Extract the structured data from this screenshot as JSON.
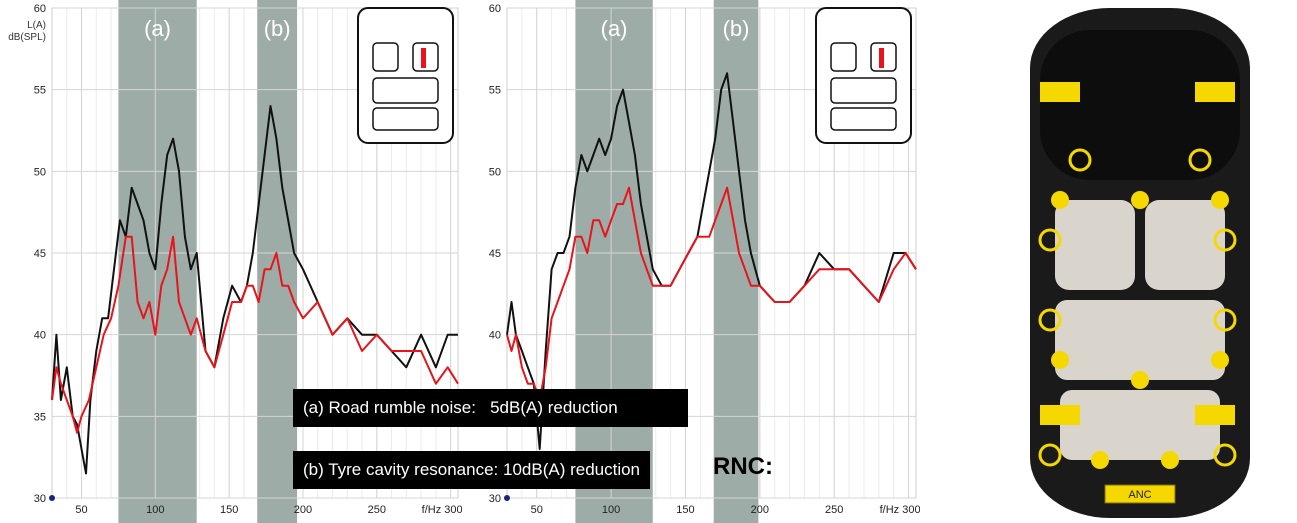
{
  "colors": {
    "band": "#9eaca8",
    "series_before": "#111111",
    "series_after": "#e8141b",
    "actuator": "#f5d800",
    "car_body": "#1a1a1a",
    "seats": "#d9d5cc"
  },
  "callouts": {
    "a": "(a) Road rumble noise:   5dB(A) reduction",
    "b": "(b) Tyre cavity resonance: 10dB(A) reduction",
    "rnc": "RNC:"
  },
  "car": {
    "anc_label": "ANC",
    "icon": "car-top-view-icon"
  },
  "chart_data": [
    {
      "type": "line",
      "ylabel": "L(A)",
      "ylabel2": "dB(SPL)",
      "xlabel": "f/Hz",
      "ylim": [
        30,
        60
      ],
      "xlim": [
        30,
        305
      ],
      "yticks": [
        30,
        35,
        40,
        45,
        50,
        55,
        60
      ],
      "xticks": [
        50,
        100,
        150,
        200,
        250,
        300
      ],
      "xticklabels": [
        "50",
        "100",
        "150",
        "200",
        "250",
        "f/Hz  300"
      ],
      "grid": true,
      "bands": [
        {
          "label": "(a)",
          "x0": 75,
          "x1": 128
        },
        {
          "label": "(b)",
          "x0": 169,
          "x1": 196
        }
      ],
      "series": [
        {
          "values": [
            [
              30,
              36
            ],
            [
              33,
              40
            ],
            [
              36,
              36
            ],
            [
              40,
              38
            ],
            [
              44,
              35
            ],
            [
              47,
              34.5
            ],
            [
              50,
              33
            ],
            [
              53,
              31.5
            ],
            [
              56,
              36
            ],
            [
              60,
              39
            ],
            [
              64,
              41
            ],
            [
              68,
              41
            ],
            [
              72,
              44
            ],
            [
              76,
              47
            ],
            [
              80,
              46
            ],
            [
              84,
              49
            ],
            [
              88,
              48
            ],
            [
              92,
              47
            ],
            [
              96,
              45
            ],
            [
              100,
              44
            ],
            [
              104,
              48
            ],
            [
              108,
              51
            ],
            [
              112,
              52
            ],
            [
              116,
              50
            ],
            [
              120,
              46
            ],
            [
              124,
              44
            ],
            [
              128,
              45
            ],
            [
              134,
              39
            ],
            [
              140,
              38
            ],
            [
              146,
              41
            ],
            [
              152,
              43
            ],
            [
              158,
              42
            ],
            [
              162,
              43
            ],
            [
              166,
              45
            ],
            [
              170,
              48
            ],
            [
              174,
              51
            ],
            [
              178,
              54
            ],
            [
              182,
              52
            ],
            [
              186,
              49
            ],
            [
              190,
              47
            ],
            [
              194,
              45
            ],
            [
              200,
              44
            ],
            [
              210,
              42
            ],
            [
              220,
              40
            ],
            [
              230,
              41
            ],
            [
              240,
              40
            ],
            [
              250,
              40
            ],
            [
              260,
              39
            ],
            [
              270,
              38
            ],
            [
              280,
              40
            ],
            [
              290,
              38
            ],
            [
              298,
              40
            ],
            [
              305,
              40
            ]
          ]
        },
        {
          "values": [
            [
              30,
              36
            ],
            [
              33,
              38
            ],
            [
              36,
              37
            ],
            [
              40,
              36
            ],
            [
              44,
              35
            ],
            [
              47,
              34
            ],
            [
              50,
              35
            ],
            [
              55,
              36
            ],
            [
              60,
              38
            ],
            [
              65,
              40
            ],
            [
              70,
              41
            ],
            [
              75,
              43
            ],
            [
              80,
              46
            ],
            [
              84,
              46
            ],
            [
              88,
              42
            ],
            [
              92,
              41
            ],
            [
              96,
              42
            ],
            [
              100,
              40
            ],
            [
              104,
              43
            ],
            [
              108,
              44
            ],
            [
              112,
              46
            ],
            [
              116,
              42
            ],
            [
              120,
              41
            ],
            [
              124,
              40
            ],
            [
              128,
              41
            ],
            [
              134,
              39
            ],
            [
              140,
              38
            ],
            [
              146,
              40
            ],
            [
              152,
              42
            ],
            [
              158,
              42
            ],
            [
              162,
              43
            ],
            [
              166,
              43
            ],
            [
              170,
              42
            ],
            [
              174,
              44
            ],
            [
              178,
              44
            ],
            [
              182,
              45
            ],
            [
              186,
              43
            ],
            [
              190,
              43
            ],
            [
              194,
              42
            ],
            [
              200,
              41
            ],
            [
              210,
              42
            ],
            [
              220,
              40
            ],
            [
              230,
              41
            ],
            [
              240,
              39
            ],
            [
              250,
              40
            ],
            [
              260,
              39
            ],
            [
              270,
              39
            ],
            [
              280,
              39
            ],
            [
              290,
              37
            ],
            [
              298,
              38
            ],
            [
              305,
              37
            ]
          ]
        }
      ]
    },
    {
      "type": "line",
      "xlabel": "f/Hz",
      "ylim": [
        30,
        60
      ],
      "xlim": [
        30,
        305
      ],
      "yticks": [
        30,
        35,
        40,
        45,
        50,
        55,
        60
      ],
      "xticks": [
        50,
        100,
        150,
        200,
        250,
        300
      ],
      "xticklabels": [
        "50",
        "100",
        "150",
        "200",
        "250",
        "f/Hz  300"
      ],
      "grid": true,
      "bands": [
        {
          "label": "(a)",
          "x0": 76,
          "x1": 128
        },
        {
          "label": "(b)",
          "x0": 169,
          "x1": 199
        }
      ],
      "series": [
        {
          "values": [
            [
              30,
              40
            ],
            [
              33,
              42
            ],
            [
              36,
              40
            ],
            [
              40,
              39
            ],
            [
              44,
              38
            ],
            [
              48,
              37
            ],
            [
              52,
              33
            ],
            [
              56,
              39
            ],
            [
              60,
              44
            ],
            [
              64,
              45
            ],
            [
              68,
              45
            ],
            [
              72,
              46
            ],
            [
              76,
              49
            ],
            [
              80,
              51
            ],
            [
              84,
              50
            ],
            [
              88,
              51
            ],
            [
              92,
              52
            ],
            [
              96,
              51
            ],
            [
              100,
              52
            ],
            [
              104,
              54
            ],
            [
              108,
              55
            ],
            [
              112,
              53
            ],
            [
              116,
              51
            ],
            [
              120,
              48
            ],
            [
              124,
              46
            ],
            [
              128,
              44
            ],
            [
              134,
              43
            ],
            [
              140,
              43
            ],
            [
              146,
              44
            ],
            [
              152,
              45
            ],
            [
              158,
              46
            ],
            [
              162,
              48
            ],
            [
              166,
              50
            ],
            [
              170,
              52
            ],
            [
              174,
              55
            ],
            [
              178,
              56
            ],
            [
              182,
              53
            ],
            [
              186,
              50
            ],
            [
              190,
              47
            ],
            [
              194,
              45
            ],
            [
              200,
              43
            ],
            [
              210,
              42
            ],
            [
              220,
              42
            ],
            [
              230,
              43
            ],
            [
              240,
              45
            ],
            [
              250,
              44
            ],
            [
              260,
              44
            ],
            [
              270,
              43
            ],
            [
              280,
              42
            ],
            [
              290,
              45
            ],
            [
              298,
              45
            ],
            [
              305,
              44
            ]
          ]
        },
        {
          "values": [
            [
              30,
              40
            ],
            [
              33,
              39
            ],
            [
              36,
              40
            ],
            [
              40,
              38
            ],
            [
              44,
              37
            ],
            [
              48,
              37
            ],
            [
              52,
              36
            ],
            [
              56,
              38
            ],
            [
              60,
              41
            ],
            [
              64,
              42
            ],
            [
              68,
              43
            ],
            [
              72,
              44
            ],
            [
              76,
              46
            ],
            [
              80,
              46
            ],
            [
              84,
              45
            ],
            [
              88,
              47
            ],
            [
              92,
              47
            ],
            [
              96,
              46
            ],
            [
              100,
              47
            ],
            [
              104,
              48
            ],
            [
              108,
              48
            ],
            [
              112,
              49
            ],
            [
              116,
              47
            ],
            [
              120,
              45
            ],
            [
              124,
              44
            ],
            [
              128,
              43
            ],
            [
              134,
              43
            ],
            [
              140,
              43
            ],
            [
              146,
              44
            ],
            [
              152,
              45
            ],
            [
              158,
              46
            ],
            [
              162,
              46
            ],
            [
              166,
              46
            ],
            [
              170,
              47
            ],
            [
              174,
              48
            ],
            [
              178,
              49
            ],
            [
              182,
              47
            ],
            [
              186,
              45
            ],
            [
              190,
              44
            ],
            [
              194,
              43
            ],
            [
              200,
              43
            ],
            [
              210,
              42
            ],
            [
              220,
              42
            ],
            [
              230,
              43
            ],
            [
              240,
              44
            ],
            [
              250,
              44
            ],
            [
              260,
              44
            ],
            [
              270,
              43
            ],
            [
              280,
              42
            ],
            [
              290,
              44
            ],
            [
              298,
              45
            ],
            [
              305,
              44
            ]
          ]
        }
      ]
    }
  ]
}
